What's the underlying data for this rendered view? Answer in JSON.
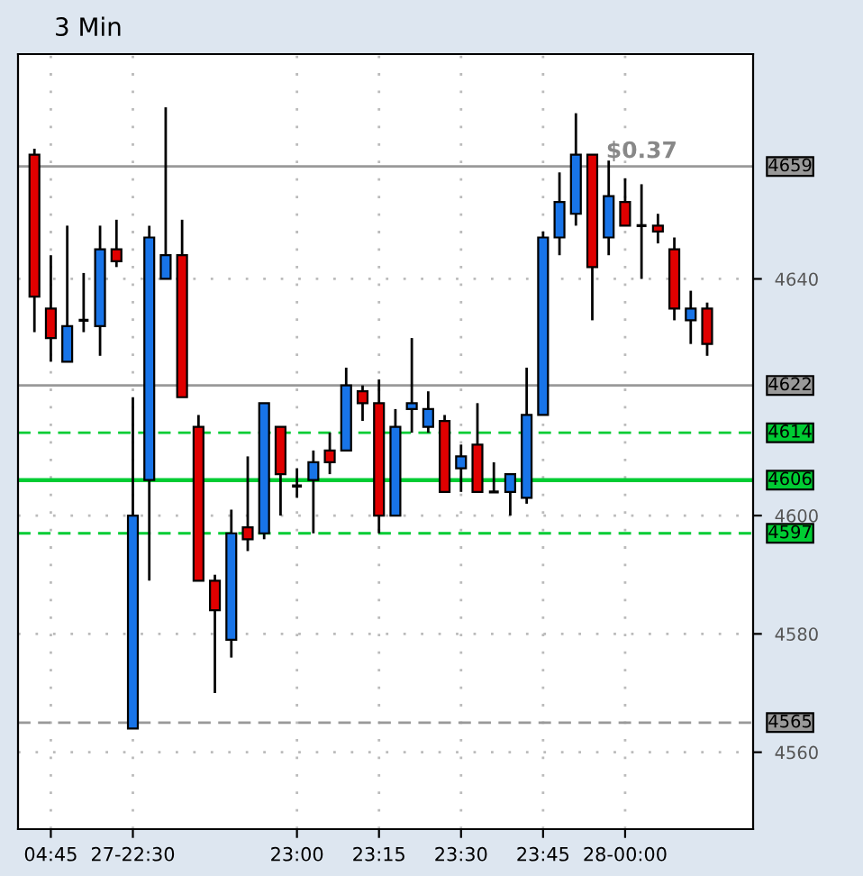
{
  "chart_data": {
    "type": "candlestick",
    "title": "3 Min",
    "categories": [
      null,
      "04:45",
      null,
      null,
      null,
      null,
      "27-22:30",
      null,
      null,
      null,
      null,
      null,
      null,
      null,
      null,
      null,
      "23:00",
      null,
      null,
      null,
      null,
      "23:15",
      null,
      null,
      null,
      null,
      "23:30",
      null,
      null,
      null,
      null,
      "23:45",
      null,
      null,
      null,
      null,
      "28-00:00",
      null,
      null,
      null,
      null,
      null
    ],
    "ohlc": [
      [
        4661,
        4662,
        4631,
        4637
      ],
      [
        4635,
        4644,
        4626,
        4630
      ],
      [
        4626,
        4649,
        4626,
        4632
      ],
      [
        4633,
        4641,
        4631,
        4633
      ],
      [
        4632,
        4649,
        4627,
        4645
      ],
      [
        4645,
        4650,
        4642,
        4643
      ],
      [
        4564,
        4620,
        4564,
        4600
      ],
      [
        4606,
        4649,
        4589,
        4647
      ],
      [
        4640,
        4669,
        4640,
        4644
      ],
      [
        4644,
        4650,
        4620,
        4620
      ],
      [
        4615,
        4617,
        4589,
        4589
      ],
      [
        4589,
        4590,
        4570,
        4584
      ],
      [
        4579,
        4601,
        4576,
        4597
      ],
      [
        4598,
        4610,
        4594,
        4596
      ],
      [
        4597,
        4619,
        4596,
        4619
      ],
      [
        4615,
        4615,
        4600,
        4607
      ],
      [
        4605,
        4608,
        4603,
        4605
      ],
      [
        4606,
        4611,
        4597,
        4609
      ],
      [
        4611,
        4614,
        4607,
        4609
      ],
      [
        4611,
        4625,
        4611,
        4622
      ],
      [
        4621,
        4622,
        4616,
        4619
      ],
      [
        4619,
        4623,
        4597,
        4600
      ],
      [
        4600,
        4618,
        4600,
        4615
      ],
      [
        4618,
        4630,
        4614,
        4619
      ],
      [
        4615,
        4621,
        4614,
        4618
      ],
      [
        4616,
        4617,
        4604,
        4604
      ],
      [
        4608,
        4612,
        4604,
        4610
      ],
      [
        4612,
        4619,
        4604,
        4604
      ],
      [
        4604,
        4609,
        4604,
        4604
      ],
      [
        4604,
        4607,
        4600,
        4607
      ],
      [
        4603,
        4625,
        4602,
        4617
      ],
      [
        4617,
        4648,
        4617,
        4647
      ],
      [
        4647,
        4658,
        4644,
        4653
      ],
      [
        4651,
        4668,
        4649,
        4661
      ],
      [
        4661,
        4661,
        4633,
        4642
      ],
      [
        4647,
        4660,
        4644,
        4654
      ],
      [
        4653,
        4657,
        4649,
        4649
      ],
      [
        4649,
        4656,
        4640,
        4649
      ],
      [
        4649,
        4651,
        4646,
        4648
      ],
      [
        4645,
        4647,
        4633,
        4635
      ],
      [
        4633,
        4638,
        4629,
        4635
      ],
      [
        4635,
        4636,
        4627,
        4629
      ]
    ],
    "colors": [
      "#e00000",
      "#e00000",
      "#1874e8",
      "#000000",
      "#1874e8",
      "#e00000",
      "#1874e8",
      "#1874e8",
      "#1874e8",
      "#e00000",
      "#e00000",
      "#e00000",
      "#1874e8",
      "#e00000",
      "#1874e8",
      "#e00000",
      "#000000",
      "#1874e8",
      "#e00000",
      "#1874e8",
      "#e00000",
      "#e00000",
      "#1874e8",
      "#1874e8",
      "#1874e8",
      "#e00000",
      "#1874e8",
      "#e00000",
      "#000000",
      "#1874e8",
      "#1874e8",
      "#1874e8",
      "#1874e8",
      "#1874e8",
      "#e00000",
      "#1874e8",
      "#e00000",
      "#000000",
      "#e00000",
      "#e00000",
      "#1874e8",
      "#e00000"
    ],
    "ylim": [
      4547,
      4678
    ],
    "yticks": [
      4560,
      4580,
      4600,
      4640
    ],
    "grid": true,
    "ref_lines": [
      {
        "axis": "y",
        "value": 4659,
        "label": "4659",
        "color": "#999999",
        "line_style": "solid"
      },
      {
        "axis": "y",
        "value": 4622,
        "label": "4622",
        "color": "#999999",
        "line_style": "solid"
      },
      {
        "axis": "y",
        "value": 4614,
        "label": "4614",
        "color": "#00cc33",
        "line_style": "dashed"
      },
      {
        "axis": "y",
        "value": 4606,
        "label": "4606",
        "color": "#00cc33",
        "line_style": "solid"
      },
      {
        "axis": "y",
        "value": 4597,
        "label": "4597",
        "color": "#00cc33",
        "line_style": "dashed"
      },
      {
        "axis": "y",
        "value": 4565,
        "label": "4565",
        "color": "#999999",
        "line_style": "dashed"
      }
    ],
    "annotations": [
      "$0.37"
    ]
  }
}
